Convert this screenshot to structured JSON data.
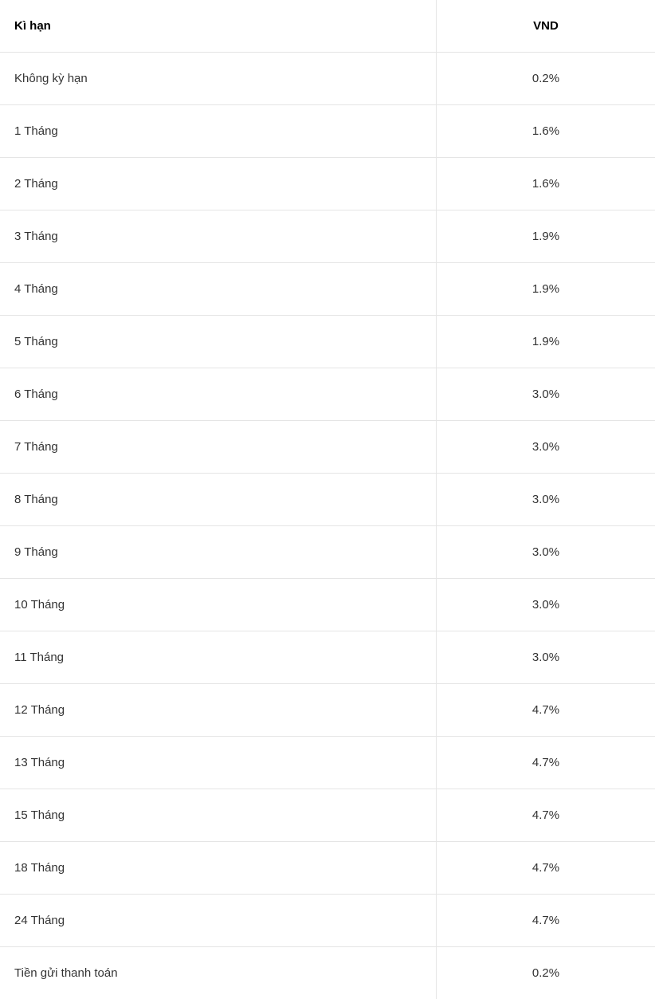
{
  "table": {
    "columns": [
      "Kì hạn",
      "VND"
    ],
    "rows": [
      [
        "Không kỳ hạn",
        "0.2%"
      ],
      [
        "1 Tháng",
        "1.6%"
      ],
      [
        "2 Tháng",
        "1.6%"
      ],
      [
        "3 Tháng",
        "1.9%"
      ],
      [
        "4 Tháng",
        "1.9%"
      ],
      [
        "5 Tháng",
        "1.9%"
      ],
      [
        "6 Tháng",
        "3.0%"
      ],
      [
        "7 Tháng",
        "3.0%"
      ],
      [
        "8 Tháng",
        "3.0%"
      ],
      [
        "9 Tháng",
        "3.0%"
      ],
      [
        "10 Tháng",
        "3.0%"
      ],
      [
        "11 Tháng",
        "3.0%"
      ],
      [
        "12 Tháng",
        "4.7%"
      ],
      [
        "13 Tháng",
        "4.7%"
      ],
      [
        "15 Tháng",
        "4.7%"
      ],
      [
        "18 Tháng",
        "4.7%"
      ],
      [
        "24 Tháng",
        "4.7%"
      ],
      [
        "Tiền gửi thanh toán",
        "0.2%"
      ]
    ],
    "styling": {
      "header_font_weight": "bold",
      "header_text_color": "#000000",
      "body_text_color": "#333333",
      "font_size": 15,
      "border_color": "#e5e5e5",
      "background_color": "#ffffff",
      "col1_width": 548,
      "col1_align": "left",
      "col2_align": "center",
      "cell_padding_y": 24,
      "cell_padding_x": 18
    }
  }
}
